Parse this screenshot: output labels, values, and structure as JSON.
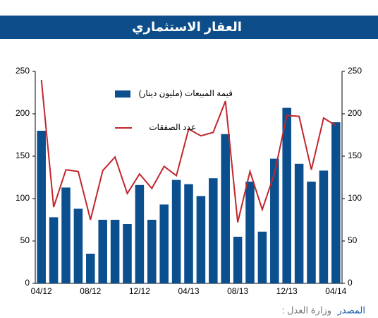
{
  "header": {
    "title": "العقار الاستثماري"
  },
  "chart_data": {
    "type": "bar",
    "categories": [
      "04/12",
      null,
      null,
      null,
      "08/12",
      null,
      null,
      null,
      "12/12",
      null,
      null,
      null,
      "04/13",
      null,
      null,
      null,
      "08/13",
      null,
      null,
      null,
      "12/13",
      null,
      null,
      null,
      "04/14"
    ],
    "series": [
      {
        "name": "قيمة المبيعات (مليون دينار)",
        "type": "bar",
        "color": "#0b4f8f",
        "values": [
          180,
          78,
          113,
          88,
          35,
          75,
          75,
          70,
          116,
          75,
          93,
          122,
          117,
          103,
          124,
          176,
          55,
          120,
          61,
          147,
          207,
          141,
          120,
          133,
          190
        ]
      },
      {
        "name": "عدد الصفقات",
        "type": "line",
        "axis": "y2",
        "color": "#c0272d",
        "values": [
          240,
          90,
          134,
          132,
          75,
          133,
          149,
          106,
          129,
          112,
          138,
          127,
          182,
          174,
          178,
          215,
          72,
          132,
          87,
          130,
          198,
          197,
          134,
          195,
          186
        ]
      }
    ],
    "ylim": [
      0,
      250
    ],
    "yticks": [
      0,
      50,
      100,
      150,
      200,
      250
    ],
    "y2lim": [
      0,
      250
    ],
    "y2ticks": [
      0,
      50,
      100,
      150,
      200,
      250
    ],
    "grid": false
  },
  "source": {
    "label": "المصدر",
    "text": ": وزارة العدل"
  }
}
